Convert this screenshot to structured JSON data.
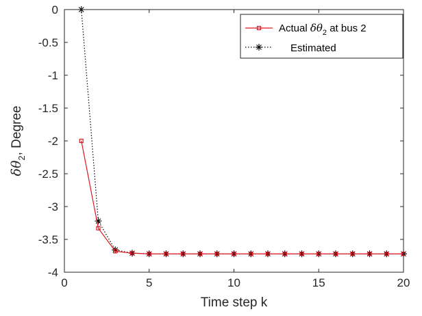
{
  "chart_data": {
    "type": "line",
    "xlabel": "Time step k",
    "ylabel_prefix": "δθ",
    "ylabel_sub": "2",
    "ylabel_suffix": ", Degree",
    "xlim": [
      0,
      20
    ],
    "ylim": [
      -4,
      0
    ],
    "xticks": [
      0,
      5,
      10,
      15,
      20
    ],
    "yticks": [
      0,
      -0.5,
      -1,
      -1.5,
      -2,
      -2.5,
      -3,
      -3.5,
      -4
    ],
    "grid": false,
    "legend_position": "top-right",
    "series": [
      {
        "name_prefix": "Actual ",
        "name_symbol": "δθ",
        "name_sub": "2",
        "name_suffix": " at bus 2",
        "color": "#e0141e",
        "line": "solid",
        "marker": "square",
        "x": [
          1,
          2,
          3,
          4,
          5,
          6,
          7,
          8,
          9,
          10,
          11,
          12,
          13,
          14,
          15,
          16,
          17,
          18,
          19,
          20
        ],
        "y": [
          -2.0,
          -3.33,
          -3.68,
          -3.71,
          -3.72,
          -3.72,
          -3.72,
          -3.72,
          -3.72,
          -3.72,
          -3.72,
          -3.72,
          -3.72,
          -3.72,
          -3.72,
          -3.72,
          -3.72,
          -3.72,
          -3.72,
          -3.72
        ]
      },
      {
        "name": "Estimated",
        "color": "#000000",
        "line": "dotted",
        "marker": "asterisk",
        "x": [
          1,
          2,
          3,
          4,
          5,
          6,
          7,
          8,
          9,
          10,
          11,
          12,
          13,
          14,
          15,
          16,
          17,
          18,
          19,
          20
        ],
        "y": [
          0.0,
          -3.22,
          -3.66,
          -3.71,
          -3.72,
          -3.72,
          -3.72,
          -3.72,
          -3.72,
          -3.72,
          -3.72,
          -3.72,
          -3.72,
          -3.72,
          -3.72,
          -3.72,
          -3.72,
          -3.72,
          -3.72,
          -3.72
        ]
      }
    ]
  }
}
